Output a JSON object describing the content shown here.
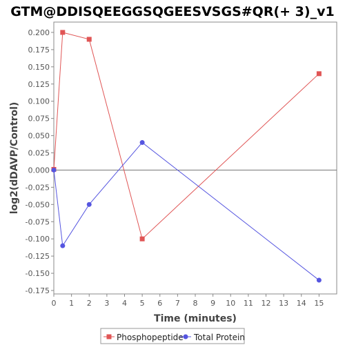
{
  "chart_data": {
    "type": "line",
    "title": "GTM@DDISQEEGGSQGEESVSGS#QR(+ 3)_v1",
    "xlabel": "Time (minutes)",
    "ylabel": "log2(dDAVP/Control)",
    "xlim": [
      0,
      16
    ],
    "ylim": [
      -0.18,
      0.215
    ],
    "x_ticks": [
      0,
      1,
      2,
      3,
      4,
      5,
      6,
      7,
      8,
      9,
      10,
      11,
      12,
      13,
      14,
      15
    ],
    "y_ticks": [
      -0.175,
      -0.15,
      -0.125,
      -0.1,
      -0.075,
      -0.05,
      -0.025,
      0.0,
      0.025,
      0.05,
      0.075,
      0.1,
      0.125,
      0.15,
      0.175,
      0.2
    ],
    "y_tick_labels": [
      "-0.175",
      "-0.150",
      "-0.125",
      "-0.100",
      "-0.075",
      "-0.050",
      "-0.025",
      "0.000",
      "0.025",
      "0.050",
      "0.075",
      "0.100",
      "0.125",
      "0.150",
      "0.175",
      "0.200"
    ],
    "grid": false,
    "zero_line": true,
    "legend_position": "bottom",
    "series": [
      {
        "name": "Phosphopeptide",
        "color": "#e05555",
        "marker": "square",
        "x": [
          0,
          0.5,
          2,
          5,
          15
        ],
        "y": [
          0.001,
          0.2,
          0.19,
          -0.1,
          0.14
        ]
      },
      {
        "name": "Total Protein",
        "color": "#5555e0",
        "marker": "circle",
        "x": [
          0,
          0.5,
          2,
          5,
          15
        ],
        "y": [
          0.0,
          -0.11,
          -0.05,
          0.04,
          -0.16
        ]
      }
    ]
  }
}
